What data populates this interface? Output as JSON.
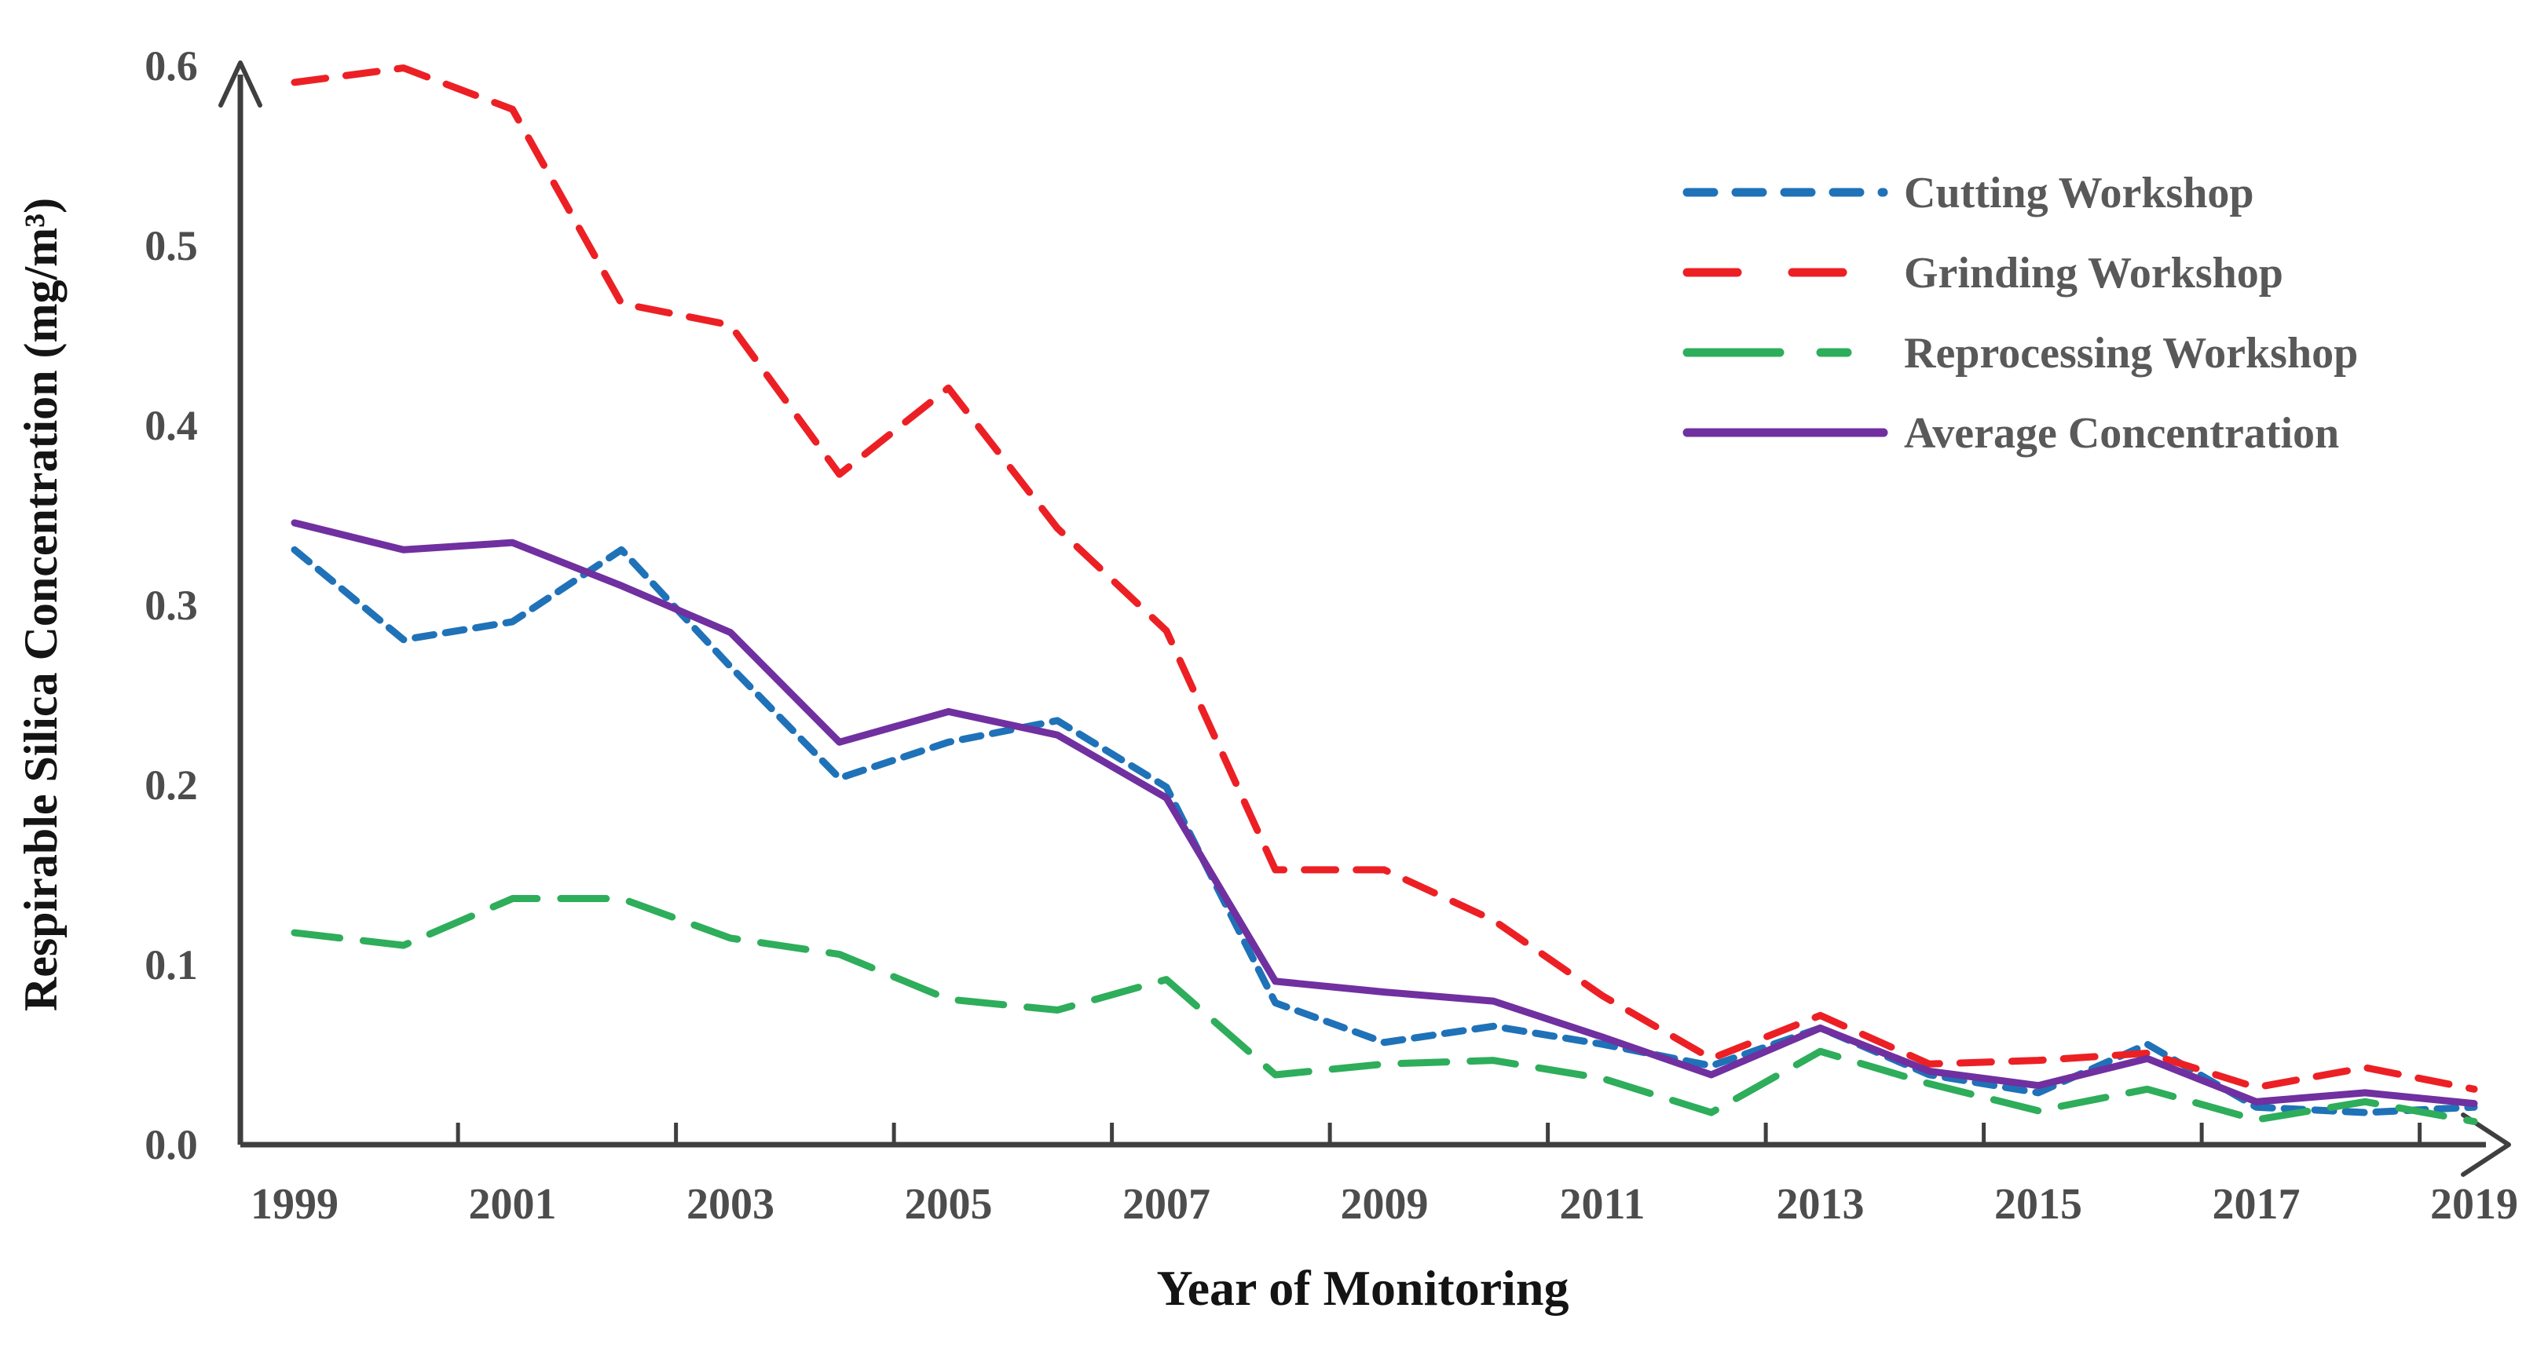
{
  "chart_data": {
    "type": "line",
    "title": "",
    "xlabel": "Year of Monitoring",
    "ylabel": "Respirable Silica Concentration (mg/m³)",
    "x": [
      1999,
      2000,
      2001,
      2002,
      2003,
      2004,
      2005,
      2006,
      2007,
      2008,
      2009,
      2010,
      2011,
      2012,
      2013,
      2014,
      2015,
      2016,
      2017,
      2018,
      2019
    ],
    "x_tick_labels": [
      "1999",
      "2001",
      "2003",
      "2005",
      "2007",
      "2009",
      "2011",
      "2013",
      "2015",
      "2017",
      "2019"
    ],
    "y_tick_labels": [
      "0.0",
      "0.1",
      "0.2",
      "0.3",
      "0.4",
      "0.5",
      "0.6"
    ],
    "ylim": [
      0,
      0.6
    ],
    "xlim": [
      1998.5,
      2019.5
    ],
    "grid": "off",
    "legend_position": "upper-right-inside",
    "series": [
      {
        "name": "Cutting Workshop",
        "line_style": "dashed-short",
        "color": "#1F72B8",
        "values": [
          0.33,
          0.28,
          0.29,
          0.33,
          0.265,
          0.203,
          0.223,
          0.235,
          0.198,
          0.078,
          0.056,
          0.065,
          0.055,
          0.043,
          0.064,
          0.038,
          0.028,
          0.055,
          0.02,
          0.017,
          0.02
        ]
      },
      {
        "name": "Grinding Workshop",
        "line_style": "dashed-long",
        "color": "#EC2024",
        "values": [
          0.59,
          0.598,
          0.575,
          0.467,
          0.455,
          0.372,
          0.42,
          0.342,
          0.285,
          0.152,
          0.152,
          0.124,
          0.082,
          0.047,
          0.071,
          0.044,
          0.046,
          0.05,
          0.031,
          0.042,
          0.03
        ]
      },
      {
        "name": "Reprocessing Workshop",
        "line_style": "dashed-extra-long",
        "color": "#2EAD5B",
        "values": [
          0.117,
          0.11,
          0.136,
          0.136,
          0.114,
          0.105,
          0.08,
          0.074,
          0.091,
          0.038,
          0.044,
          0.046,
          0.036,
          0.017,
          0.051,
          0.033,
          0.018,
          0.03,
          0.013,
          0.023,
          0.012
        ]
      },
      {
        "name": "Average Concentration",
        "line_style": "solid",
        "color": "#7030A0",
        "values": [
          0.345,
          0.33,
          0.334,
          0.31,
          0.284,
          0.223,
          0.24,
          0.227,
          0.192,
          0.09,
          0.084,
          0.079,
          0.059,
          0.038,
          0.064,
          0.04,
          0.032,
          0.047,
          0.023,
          0.028,
          0.022
        ]
      }
    ],
    "colors": {
      "axis": "#3F3F3F",
      "tick_label": "#4D4D4D",
      "legend_text": "#595959",
      "title_text": "#141414"
    }
  }
}
